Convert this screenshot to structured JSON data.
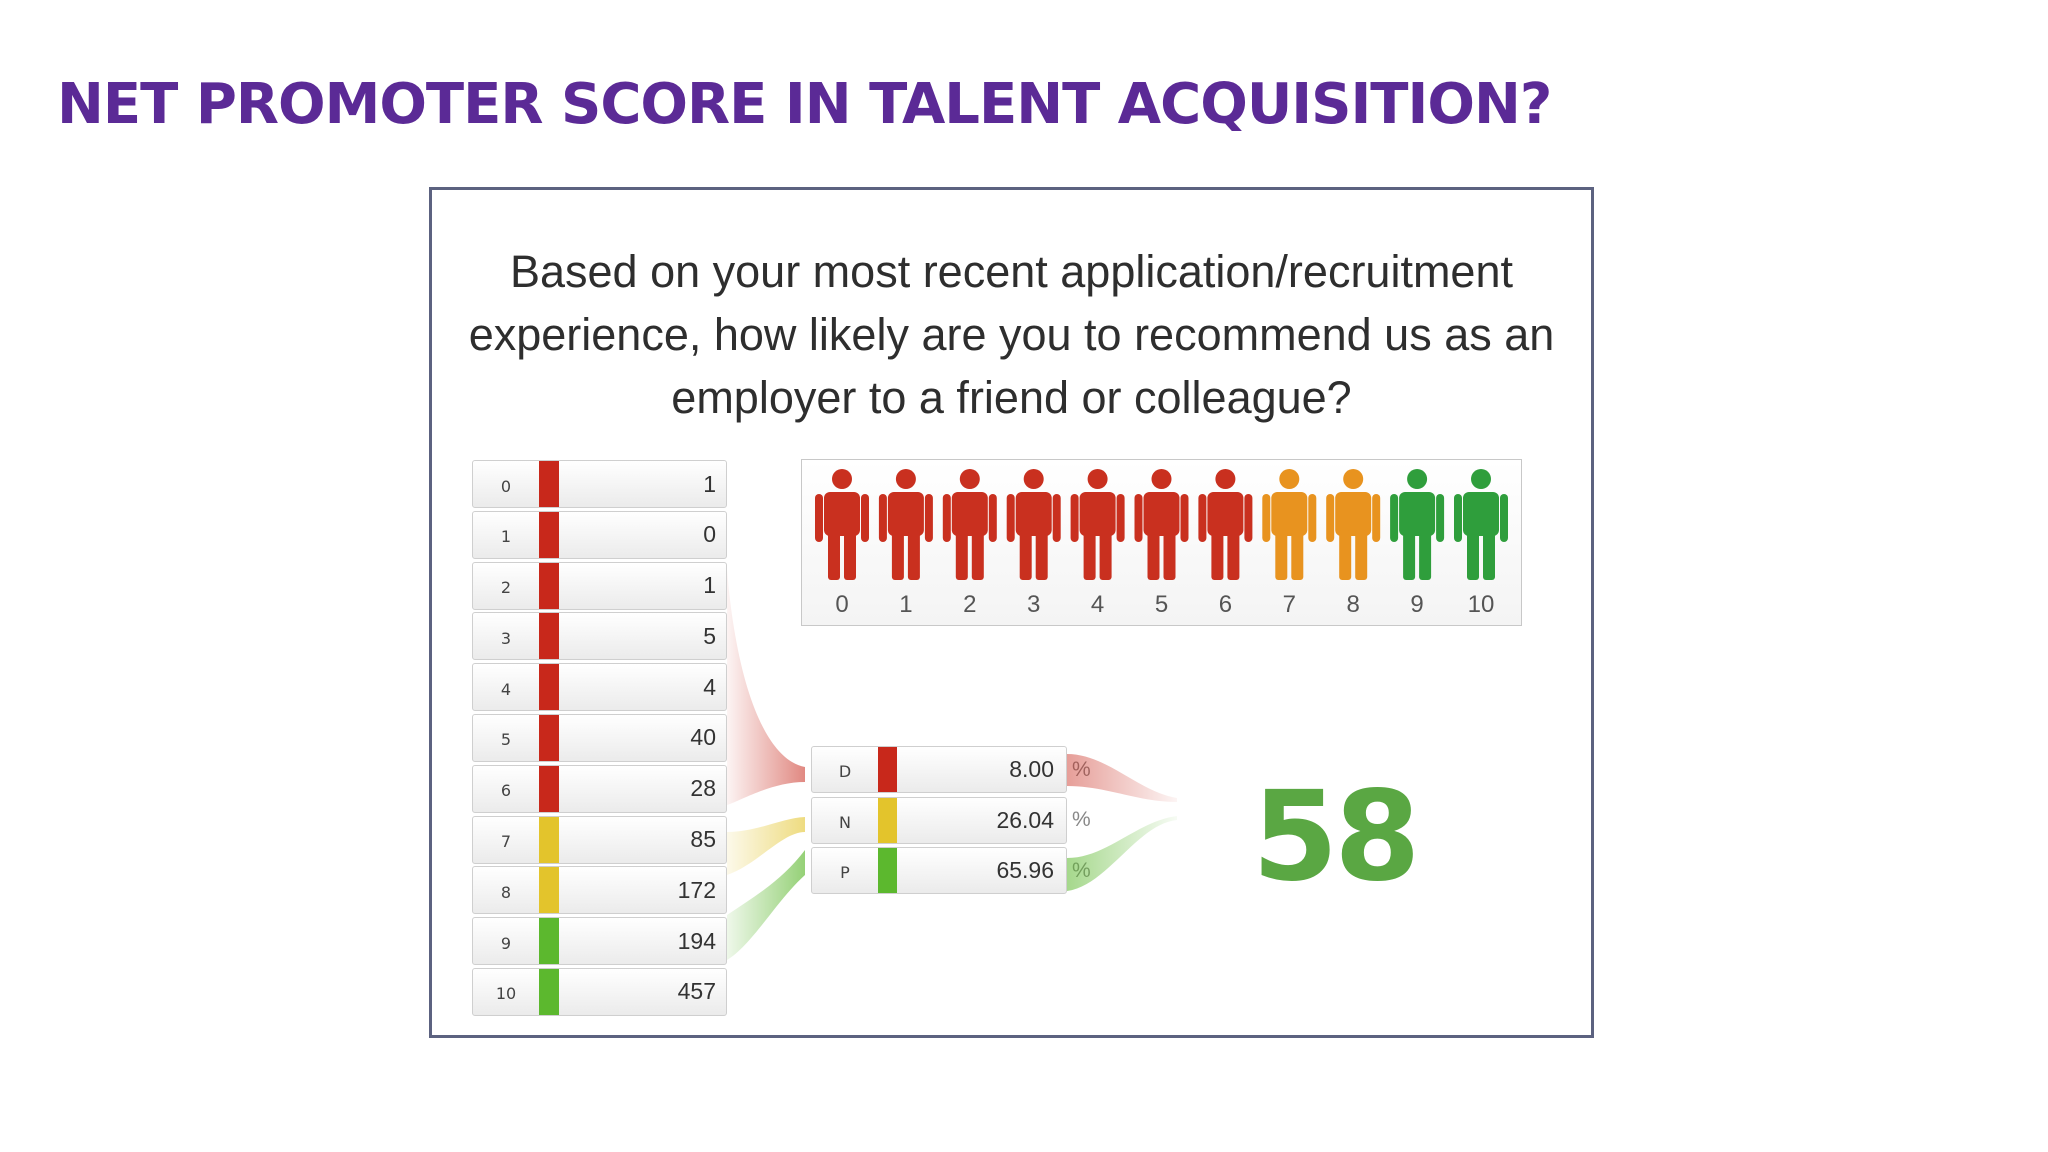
{
  "title": "NET PROMOTER SCORE IN TALENT ACQUISITION?",
  "question_lines": [
    "Based on your most recent application/recruitment",
    "experience, how likely are you to recommend us as an",
    "employer to a friend or colleague?"
  ],
  "score_rows": [
    {
      "score": "0",
      "count": "1",
      "group": "detractor"
    },
    {
      "score": "1",
      "count": "0",
      "group": "detractor"
    },
    {
      "score": "2",
      "count": "1",
      "group": "detractor"
    },
    {
      "score": "3",
      "count": "5",
      "group": "detractor"
    },
    {
      "score": "4",
      "count": "4",
      "group": "detractor"
    },
    {
      "score": "5",
      "count": "40",
      "group": "detractor"
    },
    {
      "score": "6",
      "count": "28",
      "group": "detractor"
    },
    {
      "score": "7",
      "count": "85",
      "group": "passive"
    },
    {
      "score": "8",
      "count": "172",
      "group": "passive"
    },
    {
      "score": "9",
      "count": "194",
      "group": "promoter"
    },
    {
      "score": "10",
      "count": "457",
      "group": "promoter"
    }
  ],
  "scale": [
    {
      "label": "0",
      "color": "#c9301f"
    },
    {
      "label": "1",
      "color": "#c9301f"
    },
    {
      "label": "2",
      "color": "#c9301f"
    },
    {
      "label": "3",
      "color": "#c9301f"
    },
    {
      "label": "4",
      "color": "#c9301f"
    },
    {
      "label": "5",
      "color": "#c9301f"
    },
    {
      "label": "6",
      "color": "#c9301f"
    },
    {
      "label": "7",
      "color": "#e8931f"
    },
    {
      "label": "8",
      "color": "#e8931f"
    },
    {
      "label": "9",
      "color": "#2f9e3c"
    },
    {
      "label": "10",
      "color": "#2f9e3c"
    }
  ],
  "categories": [
    {
      "label": "D",
      "value": "8.00",
      "unit": "%"
    },
    {
      "label": "N",
      "value": "26.04",
      "unit": "%"
    },
    {
      "label": "P",
      "value": "65.96",
      "unit": "%"
    }
  ],
  "nps_value": "58",
  "colors": {
    "title": "#5b2a96",
    "detractor": "#c8281b",
    "passive": "#e3c42c",
    "promoter": "#5cb82e",
    "nps": "#5aa743",
    "border": "#5c6280"
  }
}
